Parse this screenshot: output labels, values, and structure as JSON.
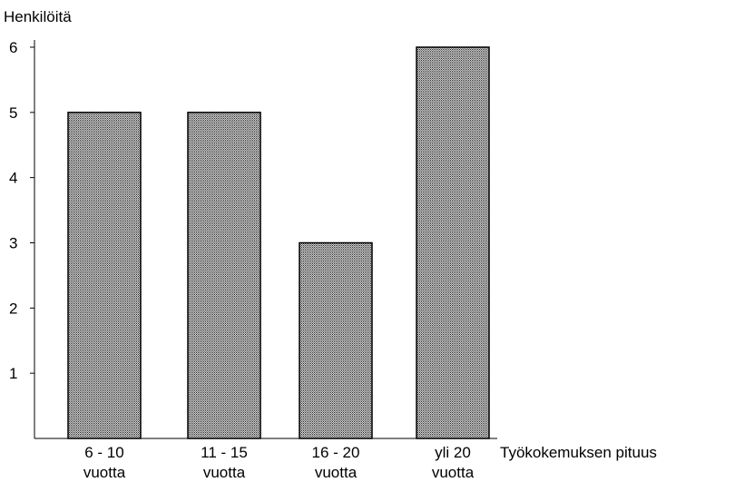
{
  "chart_data": {
    "type": "bar",
    "title": "",
    "ylabel": "Henkilöitä",
    "xlabel": "Työkokemuksen pituus",
    "categories": [
      [
        "6 - 10",
        "vuotta"
      ],
      [
        "11 - 15",
        "vuotta"
      ],
      [
        "16 - 20",
        "vuotta"
      ],
      [
        "yli 20",
        "vuotta"
      ]
    ],
    "values": [
      5,
      5,
      3,
      6
    ],
    "ylim": [
      0,
      6
    ],
    "yticks": [
      "1",
      "2",
      "3",
      "4",
      "5",
      "6"
    ],
    "grid": false,
    "legend": "none",
    "bar_color": "#9a9a9a",
    "bar_pattern": "crosshatch"
  }
}
